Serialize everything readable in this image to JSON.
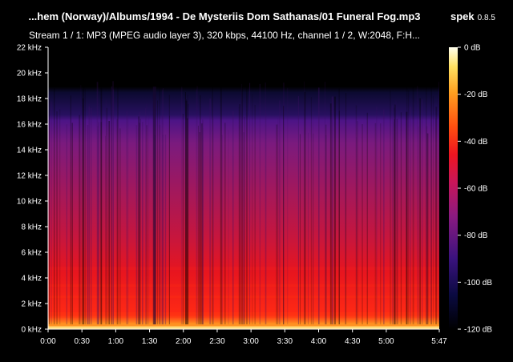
{
  "window": {
    "file_title": "...hem (Norway)/Albums/1994 - De Mysteriis Dom Sathanas/01 Funeral Fog.mp3",
    "app_name": "spek",
    "app_version": "0.8.5",
    "stream_info": "Stream 1 / 1: MP3 (MPEG audio layer 3), 320 kbps, 44100 Hz, channel 1 / 2, W:2048, F:H..."
  },
  "frequency_axis": {
    "labels": [
      "22 kHz",
      "20 kHz",
      "18 kHz",
      "16 kHz",
      "14 kHz",
      "12 kHz",
      "10 kHz",
      "8 kHz",
      "6 kHz",
      "4 kHz",
      "2 kHz",
      "0 kHz"
    ],
    "values_khz": [
      22,
      20,
      18,
      16,
      14,
      12,
      10,
      8,
      6,
      4,
      2,
      0
    ]
  },
  "time_axis": {
    "labels": [
      "0:00",
      "0:30",
      "1:00",
      "1:30",
      "2:00",
      "2:30",
      "3:00",
      "3:30",
      "4:00",
      "4:30",
      "5:00",
      "5:47"
    ],
    "values_sec": [
      0,
      30,
      60,
      90,
      120,
      150,
      180,
      210,
      240,
      270,
      300,
      347
    ]
  },
  "db_scale": {
    "labels": [
      "0 dB",
      "-20 dB",
      "-40 dB",
      "-60 dB",
      "-80 dB",
      "-100 dB",
      "-120 dB"
    ],
    "values_db": [
      0,
      -20,
      -40,
      -60,
      -80,
      -100,
      -120
    ]
  },
  "colors": {
    "background": "#000000",
    "palette": [
      "#000000",
      "#0a0a3c",
      "#32127a",
      "#6a1a8a",
      "#a0176a",
      "#d0163f",
      "#f01818",
      "#ff5a10",
      "#ffa020",
      "#ffe060",
      "#ffffe8"
    ]
  }
}
